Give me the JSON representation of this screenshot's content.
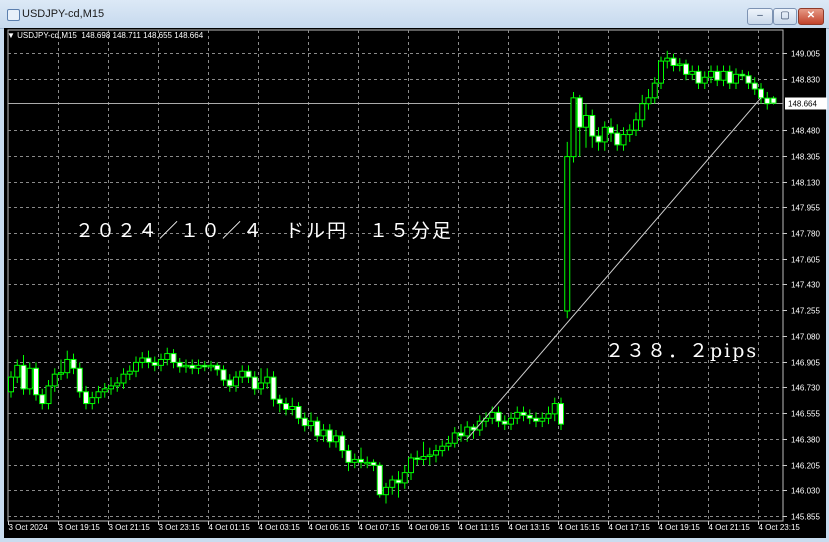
{
  "window": {
    "title": "USDJPY-cd,M15",
    "buttons": {
      "minimize": "–",
      "maximize": "▢",
      "close": "✕"
    }
  },
  "chart_header": {
    "symbol": "USDJPY-cd,M15",
    "open": "148.698",
    "high": "148.711",
    "low": "148.655",
    "close": "148.664"
  },
  "annotations": {
    "title_text": "２０２４／１０／４　ドル円　１５分足",
    "pips_text": "２３８．２pips"
  },
  "colors": {
    "background": "#000000",
    "bull": "#00ff00",
    "bear_fill": "#ffffff",
    "grid": "#8a8a8a",
    "trendline": "#d0d0d0"
  },
  "chart_data": {
    "type": "candlestick",
    "timeframe": "M15",
    "current_price": "148.664",
    "y_ticks": [
      "149.005",
      "148.830",
      "148.480",
      "148.305",
      "148.130",
      "147.955",
      "147.780",
      "147.605",
      "147.430",
      "147.255",
      "147.080",
      "146.905",
      "146.730",
      "146.555",
      "146.380",
      "146.205",
      "146.030",
      "145.855"
    ],
    "x_ticks": [
      "3 Oct 2024",
      "3 Oct 19:15",
      "3 Oct 21:15",
      "3 Oct 23:15",
      "4 Oct 01:15",
      "4 Oct 03:15",
      "4 Oct 05:15",
      "4 Oct 07:15",
      "4 Oct 09:15",
      "4 Oct 11:15",
      "4 Oct 13:15",
      "4 Oct 15:15",
      "4 Oct 17:15",
      "4 Oct 19:15",
      "4 Oct 21:15",
      "4 Oct 23:15"
    ],
    "ylim": [
      145.855,
      149.005
    ],
    "grid": true,
    "trendline": {
      "from": {
        "candle": 73,
        "price": 146.38
      },
      "to": {
        "candle": 120,
        "price": 148.7
      }
    },
    "ohlc": [
      [
        146.7,
        146.84,
        146.66,
        146.8
      ],
      [
        146.8,
        146.92,
        146.76,
        146.88
      ],
      [
        146.88,
        146.95,
        146.68,
        146.72
      ],
      [
        146.72,
        146.9,
        146.68,
        146.86
      ],
      [
        146.86,
        146.9,
        146.64,
        146.68
      ],
      [
        146.68,
        146.72,
        146.58,
        146.62
      ],
      [
        146.62,
        146.78,
        146.58,
        146.74
      ],
      [
        146.74,
        146.86,
        146.7,
        146.82
      ],
      [
        146.82,
        146.92,
        146.78,
        146.83
      ],
      [
        146.83,
        146.98,
        146.79,
        146.92
      ],
      [
        146.92,
        146.96,
        146.82,
        146.86
      ],
      [
        146.86,
        146.9,
        146.66,
        146.7
      ],
      [
        146.7,
        146.74,
        146.58,
        146.62
      ],
      [
        146.62,
        146.7,
        146.58,
        146.66
      ],
      [
        146.66,
        146.74,
        146.62,
        146.7
      ],
      [
        146.7,
        146.76,
        146.66,
        146.72
      ],
      [
        146.72,
        146.8,
        146.68,
        146.74
      ],
      [
        146.74,
        146.8,
        146.7,
        146.76
      ],
      [
        146.76,
        146.86,
        146.72,
        146.82
      ],
      [
        146.82,
        146.88,
        146.78,
        146.84
      ],
      [
        146.84,
        146.94,
        146.8,
        146.9
      ],
      [
        146.9,
        146.97,
        146.86,
        146.93
      ],
      [
        146.93,
        146.98,
        146.86,
        146.9
      ],
      [
        146.9,
        146.94,
        146.84,
        146.88
      ],
      [
        146.88,
        146.96,
        146.84,
        146.92
      ],
      [
        146.92,
        147.0,
        146.88,
        146.96
      ],
      [
        146.96,
        146.99,
        146.86,
        146.9
      ],
      [
        146.9,
        146.93,
        146.83,
        146.87
      ],
      [
        146.87,
        146.92,
        146.83,
        146.88
      ],
      [
        146.88,
        146.92,
        146.82,
        146.86
      ],
      [
        146.86,
        146.92,
        146.82,
        146.88
      ],
      [
        146.88,
        146.91,
        146.84,
        146.87
      ],
      [
        146.87,
        146.91,
        146.84,
        146.88
      ],
      [
        146.88,
        146.9,
        146.81,
        146.85
      ],
      [
        146.85,
        146.88,
        146.74,
        146.78
      ],
      [
        146.78,
        146.82,
        146.7,
        146.74
      ],
      [
        146.74,
        146.84,
        146.7,
        146.8
      ],
      [
        146.8,
        146.88,
        146.76,
        146.84
      ],
      [
        146.84,
        146.88,
        146.76,
        146.8
      ],
      [
        146.8,
        146.84,
        146.68,
        146.72
      ],
      [
        146.72,
        146.86,
        146.68,
        146.76
      ],
      [
        146.76,
        146.86,
        146.72,
        146.8
      ],
      [
        146.8,
        146.84,
        146.6,
        146.65
      ],
      [
        146.65,
        146.68,
        146.56,
        146.62
      ],
      [
        146.62,
        146.66,
        146.54,
        146.58
      ],
      [
        146.58,
        146.66,
        146.54,
        146.6
      ],
      [
        146.6,
        146.63,
        146.48,
        146.52
      ],
      [
        146.52,
        146.56,
        146.43,
        146.47
      ],
      [
        146.47,
        146.56,
        146.43,
        146.5
      ],
      [
        146.5,
        146.53,
        146.36,
        146.4
      ],
      [
        146.4,
        146.48,
        146.36,
        146.44
      ],
      [
        146.44,
        146.48,
        146.32,
        146.36
      ],
      [
        146.36,
        146.44,
        146.32,
        146.4
      ],
      [
        146.4,
        146.43,
        146.25,
        146.3
      ],
      [
        146.3,
        146.34,
        146.16,
        146.22
      ],
      [
        146.22,
        146.28,
        146.18,
        146.24
      ],
      [
        146.24,
        146.32,
        146.18,
        146.22
      ],
      [
        146.22,
        146.26,
        146.18,
        146.22
      ],
      [
        146.22,
        146.24,
        146.16,
        146.2
      ],
      [
        146.2,
        146.22,
        145.98,
        146.0
      ],
      [
        146.0,
        146.08,
        145.94,
        146.05
      ],
      [
        146.05,
        146.13,
        146.0,
        146.1
      ],
      [
        146.1,
        146.16,
        145.98,
        146.08
      ],
      [
        146.08,
        146.2,
        146.04,
        146.15
      ],
      [
        146.15,
        146.28,
        146.1,
        146.25
      ],
      [
        146.25,
        146.3,
        146.2,
        146.24
      ],
      [
        146.24,
        146.36,
        146.2,
        146.26
      ],
      [
        146.26,
        146.32,
        146.2,
        146.27
      ],
      [
        146.27,
        146.34,
        146.22,
        146.3
      ],
      [
        146.3,
        146.37,
        146.26,
        146.33
      ],
      [
        146.33,
        146.4,
        146.3,
        146.35
      ],
      [
        146.35,
        146.46,
        146.32,
        146.42
      ],
      [
        146.42,
        146.48,
        146.36,
        146.4
      ],
      [
        146.4,
        146.5,
        146.36,
        146.46
      ],
      [
        146.46,
        146.48,
        146.38,
        146.44
      ],
      [
        146.44,
        146.54,
        146.4,
        146.5
      ],
      [
        146.5,
        146.56,
        146.46,
        146.52
      ],
      [
        146.52,
        146.6,
        146.48,
        146.56
      ],
      [
        146.56,
        146.6,
        146.46,
        146.5
      ],
      [
        146.5,
        146.54,
        146.44,
        146.48
      ],
      [
        146.48,
        146.56,
        146.44,
        146.52
      ],
      [
        146.52,
        146.6,
        146.48,
        146.56
      ],
      [
        146.56,
        146.6,
        146.5,
        146.54
      ],
      [
        146.54,
        146.58,
        146.48,
        146.52
      ],
      [
        146.52,
        146.56,
        146.46,
        146.5
      ],
      [
        146.5,
        146.56,
        146.46,
        146.52
      ],
      [
        146.52,
        146.6,
        146.48,
        146.55
      ],
      [
        146.55,
        146.66,
        146.5,
        146.62
      ],
      [
        146.62,
        146.66,
        146.44,
        146.48
      ],
      [
        147.25,
        148.4,
        147.2,
        148.3
      ],
      [
        148.3,
        148.74,
        148.26,
        148.7
      ],
      [
        148.7,
        148.72,
        148.3,
        148.5
      ],
      [
        148.5,
        148.66,
        148.36,
        148.58
      ],
      [
        148.58,
        148.62,
        148.36,
        148.44
      ],
      [
        148.44,
        148.5,
        148.34,
        148.4
      ],
      [
        148.4,
        148.54,
        148.34,
        148.5
      ],
      [
        148.5,
        148.56,
        148.4,
        148.46
      ],
      [
        148.46,
        148.52,
        148.34,
        148.38
      ],
      [
        148.38,
        148.5,
        148.34,
        148.45
      ],
      [
        148.45,
        148.52,
        148.4,
        148.48
      ],
      [
        148.48,
        148.6,
        148.44,
        148.55
      ],
      [
        148.55,
        148.72,
        148.5,
        148.66
      ],
      [
        148.66,
        148.76,
        148.62,
        148.7
      ],
      [
        148.7,
        148.84,
        148.66,
        148.8
      ],
      [
        148.8,
        148.98,
        148.76,
        148.95
      ],
      [
        148.95,
        149.02,
        148.9,
        148.97
      ],
      [
        148.97,
        149.0,
        148.88,
        148.92
      ],
      [
        148.92,
        148.97,
        148.88,
        148.93
      ],
      [
        148.93,
        148.96,
        148.82,
        148.86
      ],
      [
        148.86,
        148.92,
        148.82,
        148.88
      ],
      [
        148.88,
        148.92,
        148.76,
        148.8
      ],
      [
        148.8,
        148.88,
        148.76,
        148.84
      ],
      [
        148.84,
        148.92,
        148.8,
        148.88
      ],
      [
        148.88,
        148.92,
        148.78,
        148.82
      ],
      [
        148.82,
        148.92,
        148.78,
        148.88
      ],
      [
        148.88,
        148.92,
        148.76,
        148.8
      ],
      [
        148.8,
        148.9,
        148.76,
        148.86
      ],
      [
        148.86,
        148.89,
        148.82,
        148.85
      ],
      [
        148.85,
        148.88,
        148.76,
        148.8
      ],
      [
        148.8,
        148.84,
        148.72,
        148.76
      ],
      [
        148.76,
        148.8,
        148.66,
        148.7
      ],
      [
        148.698,
        148.74,
        148.62,
        148.66
      ],
      [
        148.698,
        148.711,
        148.655,
        148.664
      ]
    ]
  }
}
